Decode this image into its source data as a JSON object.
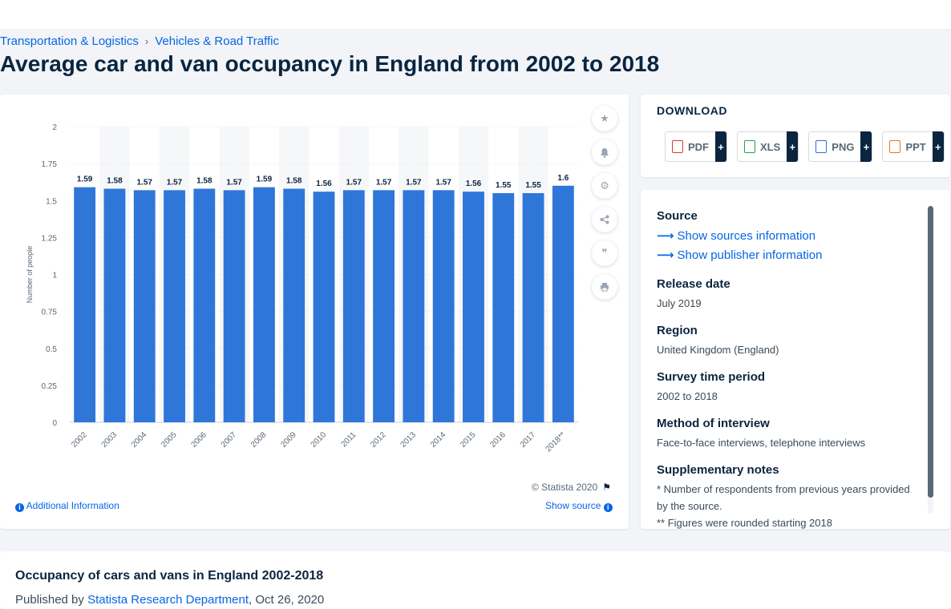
{
  "breadcrumb": {
    "item1": "Transportation & Logistics",
    "separator": "›",
    "item2": "Vehicles & Road Traffic"
  },
  "page_title": "Average car and van occupancy in England from 2002 to 2018",
  "chart_card": {
    "copyright": "© Statista 2020",
    "additional_info": "Additional Information",
    "show_source": "Show source"
  },
  "download": {
    "title": "DOWNLOAD",
    "buttons": [
      {
        "label": "PDF",
        "icon": "pdf-file-icon",
        "color": "#e03c31"
      },
      {
        "label": "XLS",
        "icon": "xls-file-icon",
        "color": "#2e9b4b"
      },
      {
        "label": "PNG",
        "icon": "png-file-icon",
        "color": "#2f6fd6"
      },
      {
        "label": "PPT",
        "icon": "ppt-file-icon",
        "color": "#e07b1f"
      }
    ],
    "plus": "+"
  },
  "info": {
    "source_head": "Source",
    "show_sources": "Show sources information",
    "show_publisher": "Show publisher information",
    "release_head": "Release date",
    "release_val": "July 2019",
    "region_head": "Region",
    "region_val": "United Kingdom (England)",
    "survey_head": "Survey time period",
    "survey_val": "2002 to 2018",
    "method_head": "Method of interview",
    "method_val": "Face-to-face interviews, telephone interviews",
    "notes_head": "Supplementary notes",
    "notes_val1": "* Number of respondents from previous years provided by the source.",
    "notes_val2": "** Figures were rounded starting 2018"
  },
  "footer": {
    "title": "Occupancy of cars and vans in England 2002-2018",
    "published_by": "Published by",
    "publisher": "Statista Research Department",
    "date": ", Oct 26, 2020"
  },
  "colors": {
    "bar": "#2f76d9",
    "accent": "#0666e5",
    "text": "#0a2540"
  },
  "chart_data": {
    "type": "bar",
    "categories": [
      "2002",
      "2003",
      "2004",
      "2005",
      "2006",
      "2007",
      "2008",
      "2009",
      "2010",
      "2011",
      "2012",
      "2013",
      "2014",
      "2015",
      "2016",
      "2017",
      "2018**"
    ],
    "values": [
      1.59,
      1.58,
      1.57,
      1.57,
      1.58,
      1.57,
      1.59,
      1.58,
      1.56,
      1.57,
      1.57,
      1.57,
      1.57,
      1.56,
      1.55,
      1.55,
      1.6
    ],
    "data_labels": [
      "1.59",
      "1.58",
      "1.57",
      "1.57",
      "1.58",
      "1.57",
      "1.59",
      "1.58",
      "1.56",
      "1.57",
      "1.57",
      "1.57",
      "1.57",
      "1.56",
      "1.55",
      "1.55",
      "1.6"
    ],
    "ylabel": "Number of people",
    "xlabel": "",
    "ylim": [
      0,
      2
    ],
    "yticks": [
      0,
      0.25,
      0.5,
      0.75,
      1,
      1.25,
      1.5,
      1.75,
      2
    ],
    "ytick_labels": [
      "0",
      "0.25",
      "0.5",
      "0.75",
      "1",
      "1.25",
      "1.5",
      "1.75",
      "2"
    ],
    "grid": true,
    "legend": "none"
  }
}
